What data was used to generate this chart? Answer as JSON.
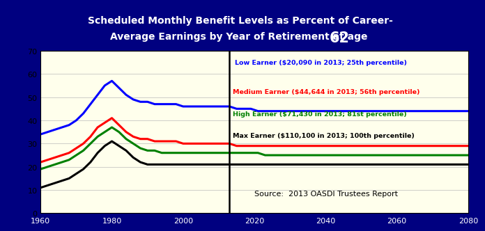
{
  "title_line1": "Scheduled Monthly Benefit Levels as Percent of Career-",
  "title_line2": "Average Earnings by Year of Retirement at age ",
  "title_age": "62",
  "title_bg": "#000080",
  "title_color": "white",
  "plot_bg": "#FFFFEC",
  "outer_bg": "#000080",
  "ylabel_range": [
    0,
    70
  ],
  "yticks": [
    0,
    10,
    20,
    30,
    40,
    50,
    60,
    70
  ],
  "xticks": [
    1960,
    1980,
    2000,
    2020,
    2040,
    2060,
    2080
  ],
  "xmin": 1960,
  "xmax": 2080,
  "vline_x": 2013,
  "source_text": "Source:  2013 OASDI Trustees Report",
  "legend_labels": [
    "Low Earner ($20,090 in 2013; 25th percentile)",
    "Medium Earner ($44,644 in 2013; 56th percentile)",
    "High Earner ($71,430 in 2013; 81st percentile)",
    "Max Earner ($110,100 in 2013; 100th percentile)"
  ],
  "legend_colors": [
    "blue",
    "red",
    "green",
    "black"
  ],
  "low_earner": {
    "x": [
      1960,
      1962,
      1964,
      1966,
      1968,
      1970,
      1972,
      1974,
      1976,
      1978,
      1980,
      1982,
      1984,
      1986,
      1988,
      1990,
      1992,
      1994,
      1996,
      1998,
      2000,
      2002,
      2004,
      2006,
      2008,
      2010,
      2012,
      2013,
      2015,
      2017,
      2019,
      2021,
      2023,
      2025,
      2027,
      2030,
      2033,
      2036,
      2040,
      2045,
      2050,
      2055,
      2060,
      2065,
      2070,
      2075,
      2080
    ],
    "y": [
      34,
      35,
      36,
      37,
      38,
      40,
      43,
      47,
      51,
      55,
      57,
      54,
      51,
      49,
      48,
      48,
      47,
      47,
      47,
      47,
      46,
      46,
      46,
      46,
      46,
      46,
      46,
      46,
      45,
      45,
      45,
      44,
      44,
      44,
      44,
      44,
      44,
      44,
      44,
      44,
      44,
      44,
      44,
      44,
      44,
      44,
      44
    ]
  },
  "medium_earner": {
    "x": [
      1960,
      1962,
      1964,
      1966,
      1968,
      1970,
      1972,
      1974,
      1976,
      1978,
      1980,
      1982,
      1984,
      1986,
      1988,
      1990,
      1992,
      1994,
      1996,
      1998,
      2000,
      2002,
      2004,
      2006,
      2008,
      2010,
      2012,
      2013,
      2015,
      2017,
      2019,
      2021,
      2023,
      2025,
      2027,
      2030,
      2033,
      2036,
      2040,
      2045,
      2050,
      2055,
      2060,
      2065,
      2070,
      2075,
      2080
    ],
    "y": [
      22,
      23,
      24,
      25,
      26,
      28,
      30,
      33,
      37,
      39,
      41,
      38,
      35,
      33,
      32,
      32,
      31,
      31,
      31,
      31,
      30,
      30,
      30,
      30,
      30,
      30,
      30,
      30,
      29,
      29,
      29,
      29,
      29,
      29,
      29,
      29,
      29,
      29,
      29,
      29,
      29,
      29,
      29,
      29,
      29,
      29,
      29
    ]
  },
  "high_earner": {
    "x": [
      1960,
      1962,
      1964,
      1966,
      1968,
      1970,
      1972,
      1974,
      1976,
      1978,
      1980,
      1982,
      1984,
      1986,
      1988,
      1990,
      1992,
      1994,
      1996,
      1998,
      2000,
      2002,
      2004,
      2006,
      2008,
      2010,
      2012,
      2013,
      2015,
      2017,
      2019,
      2021,
      2023,
      2025,
      2027,
      2030,
      2033,
      2036,
      2040,
      2045,
      2050,
      2055,
      2060,
      2065,
      2070,
      2075,
      2080
    ],
    "y": [
      19,
      20,
      21,
      22,
      23,
      25,
      27,
      30,
      33,
      35,
      37,
      35,
      32,
      30,
      28,
      27,
      27,
      26,
      26,
      26,
      26,
      26,
      26,
      26,
      26,
      26,
      26,
      26,
      26,
      26,
      26,
      26,
      25,
      25,
      25,
      25,
      25,
      25,
      25,
      25,
      25,
      25,
      25,
      25,
      25,
      25,
      25
    ]
  },
  "max_earner": {
    "x": [
      1960,
      1962,
      1964,
      1966,
      1968,
      1970,
      1972,
      1974,
      1976,
      1978,
      1980,
      1982,
      1984,
      1986,
      1988,
      1990,
      1992,
      1994,
      1996,
      1998,
      2000,
      2002,
      2004,
      2006,
      2008,
      2010,
      2012,
      2013,
      2015,
      2017,
      2019,
      2021,
      2023,
      2025,
      2027,
      2030,
      2033,
      2036,
      2040,
      2045,
      2050,
      2055,
      2060,
      2065,
      2070,
      2075,
      2080
    ],
    "y": [
      11,
      12,
      13,
      14,
      15,
      17,
      19,
      22,
      26,
      29,
      31,
      29,
      27,
      24,
      22,
      21,
      21,
      21,
      21,
      21,
      21,
      21,
      21,
      21,
      21,
      21,
      21,
      21,
      21,
      21,
      21,
      21,
      21,
      21,
      21,
      21,
      21,
      21,
      21,
      21,
      21,
      21,
      21,
      21,
      21,
      21,
      21
    ]
  }
}
